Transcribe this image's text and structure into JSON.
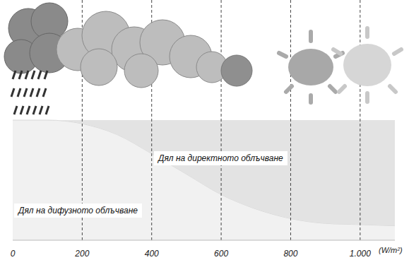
{
  "chart_data": {
    "type": "area",
    "stacked": true,
    "x": [
      0,
      100,
      200,
      300,
      400,
      500,
      600,
      700,
      800,
      900,
      1000,
      1100
    ],
    "xlim": [
      0,
      1100
    ],
    "xticks": [
      0,
      200,
      400,
      600,
      800,
      {
        "value": 1000,
        "label": "1.000"
      }
    ],
    "xlabel": "(W/m²)",
    "ylim": [
      0,
      200
    ],
    "tick_labels": "x",
    "grid": true,
    "series": [
      {
        "name": "Дял на дифузното облъчване",
        "color": "#f1f1f1",
        "values": [
          100,
          100,
          97,
          88,
          72,
          55,
          38,
          26,
          18,
          14,
          13,
          12
        ]
      },
      {
        "name": "Дял на директното облъчване",
        "color": "#e3e3e3",
        "values": [
          0,
          0,
          3,
          12,
          28,
          45,
          62,
          74,
          82,
          86,
          87,
          88
        ]
      }
    ]
  }
}
